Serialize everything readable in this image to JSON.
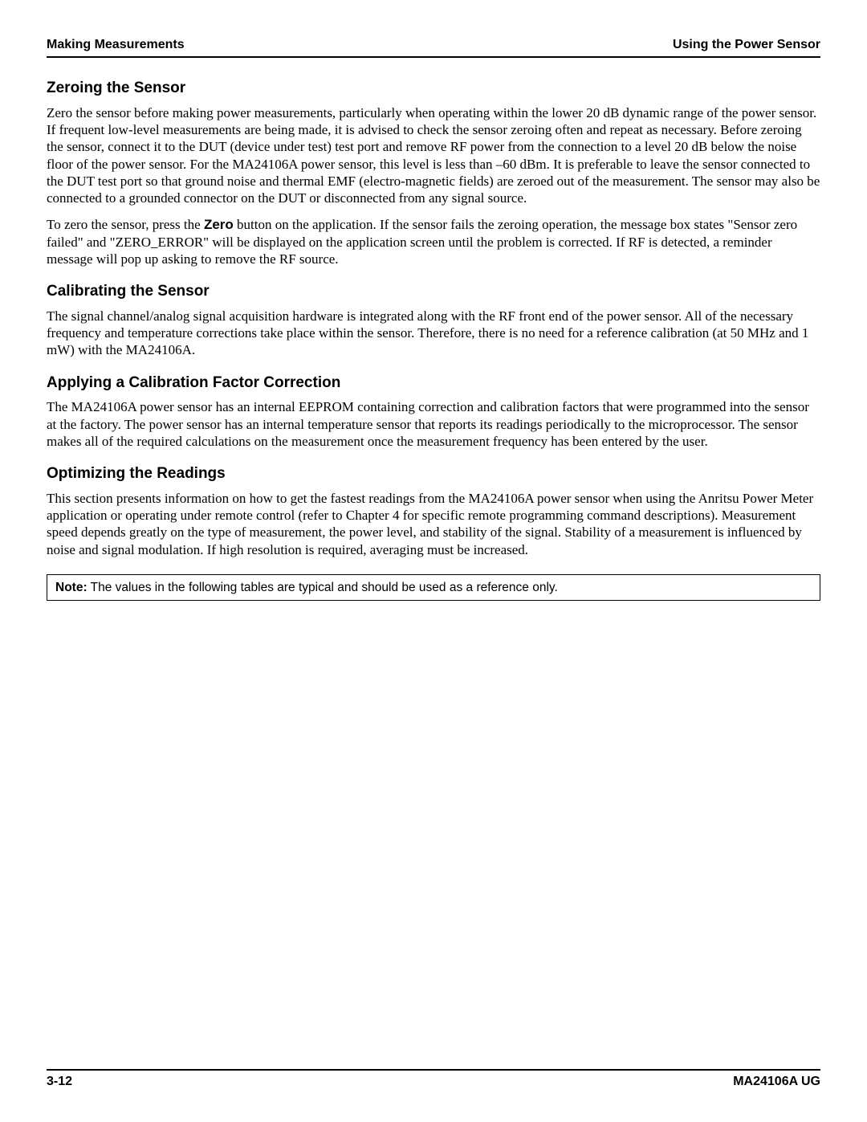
{
  "header": {
    "left": "Making Measurements",
    "right": "Using the Power Sensor"
  },
  "sections": {
    "zeroing": {
      "title": "Zeroing the Sensor",
      "p1": "Zero the sensor before making power measurements, particularly when operating within the lower 20 dB dynamic range of the power sensor. If frequent low-level measurements are being made, it is advised to check the sensor zeroing often and repeat as necessary. Before zeroing the sensor, connect it to the DUT (device under test) test port and remove RF power from the connection to a level 20 dB below the noise floor of the power sensor. For the MA24106A power sensor, this level is less than –60 dBm. It is preferable to leave the sensor connected to the DUT test port so that ground noise and thermal EMF (electro-magnetic fields) are zeroed out of the measurement. The sensor may also be connected to a grounded connector on the DUT or disconnected from any signal source.",
      "p2_pre": "To zero the sensor, press the ",
      "p2_bold": "Zero",
      "p2_post": " button on the application. If the sensor fails the zeroing operation, the message box states \"Sensor zero failed\" and \"ZERO_ERROR\" will be displayed on the application screen until the problem is corrected. If RF is detected, a reminder message will pop up asking to remove the RF source."
    },
    "calibrating": {
      "title": "Calibrating the Sensor",
      "p1": "The signal channel/analog signal acquisition hardware is integrated along with the RF front end of the power sensor. All of the necessary frequency and temperature corrections take place within the sensor. Therefore, there is no need for a reference calibration (at 50 MHz and 1 mW) with the MA24106A."
    },
    "calfactor": {
      "title": "Applying a Calibration Factor Correction",
      "p1": "The MA24106A power sensor has an internal EEPROM containing correction and calibration factors that were programmed into the sensor at the factory. The power sensor has an internal temperature sensor that reports its readings periodically to the microprocessor. The sensor makes all of the required calculations on the measurement once the measurement frequency has been entered by the user."
    },
    "optimizing": {
      "title": "Optimizing the Readings",
      "p1": "This section presents information on how to get the fastest readings from the MA24106A power sensor when using the Anritsu Power Meter application or operating under remote control (refer to Chapter 4 for specific remote programming command descriptions). Measurement speed depends greatly on the type of measurement, the power level, and stability of the signal. Stability of a measurement is influenced by noise and signal modulation. If high resolution is required, averaging must be increased."
    }
  },
  "note": {
    "label": "Note:",
    "text": " The values in the following tables are typical and should be used as a reference only."
  },
  "footer": {
    "left": "3-12",
    "right": "MA24106A UG"
  }
}
